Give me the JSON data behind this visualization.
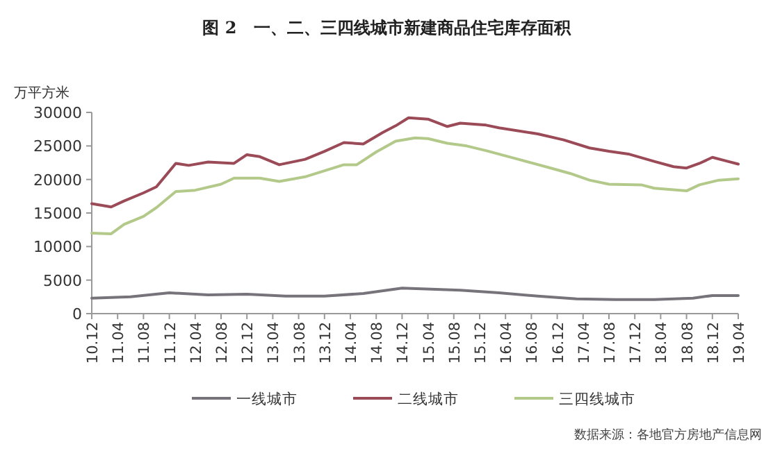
{
  "chart_data": {
    "type": "line",
    "title": "图 2　一、二、三四线城市新建商品住宅库存面积",
    "ylabel": "万平方米",
    "annotations": [
      "数据来源：各地官方房地产信息网"
    ],
    "xlim": [
      "2010-12",
      "2019-04"
    ],
    "xticks": [
      {
        "value": "2010-12",
        "label": "10.12"
      },
      {
        "value": "2011-04",
        "label": "11.04"
      },
      {
        "value": "2011-08",
        "label": "11.08"
      },
      {
        "value": "2011-12",
        "label": "11.12"
      },
      {
        "value": "2012-04",
        "label": "12.04"
      },
      {
        "value": "2012-08",
        "label": "12.08"
      },
      {
        "value": "2012-12",
        "label": "12.12"
      },
      {
        "value": "2013-04",
        "label": "13.04"
      },
      {
        "value": "2013-08",
        "label": "13.08"
      },
      {
        "value": "2013-12",
        "label": "13.12"
      },
      {
        "value": "2014-04",
        "label": "14.04"
      },
      {
        "value": "2014-08",
        "label": "14.08"
      },
      {
        "value": "2014-12",
        "label": "14.12"
      },
      {
        "value": "2015-04",
        "label": "15.04"
      },
      {
        "value": "2015-08",
        "label": "15.08"
      },
      {
        "value": "2015-12",
        "label": "15.12"
      },
      {
        "value": "2016-04",
        "label": "16.04"
      },
      {
        "value": "2016-08",
        "label": "16.08"
      },
      {
        "value": "2016-12",
        "label": "16.12"
      },
      {
        "value": "2017-04",
        "label": "17.04"
      },
      {
        "value": "2017-08",
        "label": "17.08"
      },
      {
        "value": "2017-12",
        "label": "17.12"
      },
      {
        "value": "2018-04",
        "label": "18.04"
      },
      {
        "value": "2018-08",
        "label": "18.08"
      },
      {
        "value": "2018-12",
        "label": "18.12"
      },
      {
        "value": "2019-04",
        "label": "19.04"
      }
    ],
    "ylim": [
      0,
      30000
    ],
    "yticks": [
      0,
      5000,
      10000,
      15000,
      20000,
      25000,
      30000
    ],
    "legend": "bottom",
    "series": [
      {
        "name": "一线城市",
        "color": "#77737a",
        "x": [
          "2010-12",
          "2011-06",
          "2011-12",
          "2012-06",
          "2012-12",
          "2013-06",
          "2013-12",
          "2014-06",
          "2014-12",
          "2015-03",
          "2015-09",
          "2016-03",
          "2016-09",
          "2017-03",
          "2017-09",
          "2018-03",
          "2018-09",
          "2018-12",
          "2019-04"
        ],
        "values": [
          2300,
          2500,
          3100,
          2800,
          2900,
          2600,
          2600,
          3000,
          3800,
          3700,
          3500,
          3100,
          2600,
          2200,
          2100,
          2100,
          2300,
          2700,
          2700
        ]
      },
      {
        "name": "二线城市",
        "color": "#9b4a57",
        "x": [
          "2010-12",
          "2011-03",
          "2011-05",
          "2011-08",
          "2011-10",
          "2012-01",
          "2012-03",
          "2012-06",
          "2012-10",
          "2012-12",
          "2013-02",
          "2013-05",
          "2013-09",
          "2013-12",
          "2014-03",
          "2014-06",
          "2014-09",
          "2014-11",
          "2015-01",
          "2015-04",
          "2015-07",
          "2015-09",
          "2016-01",
          "2016-03",
          "2016-09",
          "2017-01",
          "2017-05",
          "2017-08",
          "2017-11",
          "2018-03",
          "2018-06",
          "2018-08",
          "2018-10",
          "2018-12",
          "2019-02",
          "2019-04"
        ],
        "values": [
          16400,
          15900,
          16800,
          18000,
          18900,
          22400,
          22100,
          22600,
          22400,
          23700,
          23400,
          22200,
          23000,
          24200,
          25500,
          25300,
          27000,
          28000,
          29200,
          29000,
          27900,
          28400,
          28100,
          27700,
          26800,
          25900,
          24700,
          24200,
          23800,
          22700,
          21900,
          21700,
          22400,
          23300,
          22800,
          22300
        ]
      },
      {
        "name": "三四线城市",
        "color": "#b3c98a",
        "x": [
          "2010-12",
          "2011-03",
          "2011-05",
          "2011-08",
          "2011-10",
          "2012-01",
          "2012-04",
          "2012-08",
          "2012-10",
          "2013-02",
          "2013-05",
          "2013-09",
          "2013-12",
          "2014-03",
          "2014-05",
          "2014-08",
          "2014-11",
          "2015-02",
          "2015-04",
          "2015-07",
          "2015-10",
          "2016-01",
          "2016-06",
          "2016-11",
          "2017-02",
          "2017-05",
          "2017-08",
          "2018-01",
          "2018-03",
          "2018-08",
          "2018-10",
          "2019-01",
          "2019-04"
        ],
        "values": [
          12000,
          11900,
          13300,
          14500,
          15800,
          18200,
          18400,
          19300,
          20200,
          20200,
          19700,
          20400,
          21300,
          22200,
          22200,
          24100,
          25700,
          26200,
          26100,
          25400,
          25000,
          24300,
          23000,
          21700,
          20900,
          19900,
          19300,
          19200,
          18700,
          18300,
          19200,
          19900,
          20100
        ]
      }
    ]
  }
}
